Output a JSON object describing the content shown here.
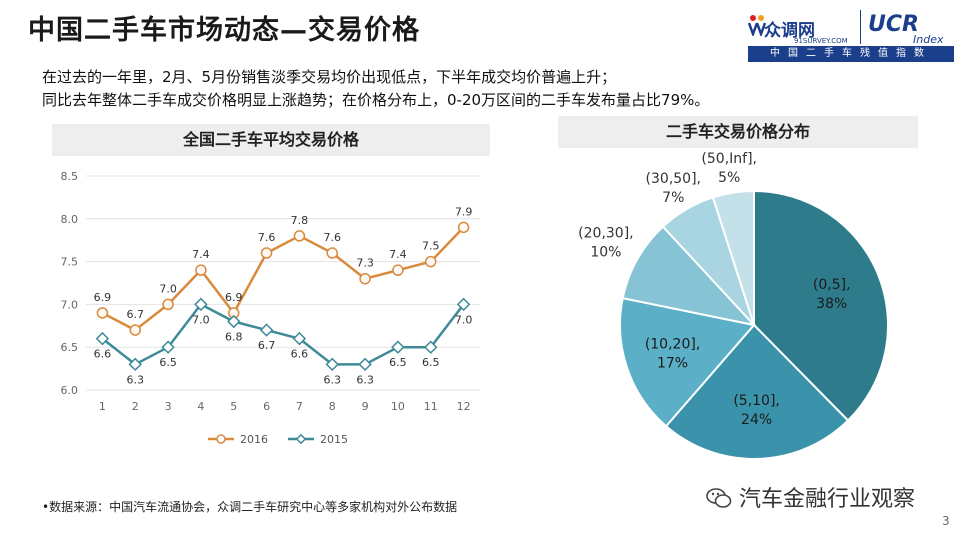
{
  "page": {
    "title": "中国二手车市场动态—交易价格",
    "summary_line1": "在过去的一年里，2月、5月份销售淡季交易均价出现低点，下半年成交均价普遍上升；",
    "summary_line2": "同比去年整体二手车成交价格明显上涨趋势；在价格分布上，0-20万区间的二手车发布量占比79%。",
    "source_note": "•数据来源：中国汽车流通协会，众调二手车研究中心等多家机构对外公布数据",
    "watermark": "汽车金融行业观察",
    "page_number": "3"
  },
  "logo": {
    "brand_cn": "众调网",
    "brand_url": "91SURVEY.COM",
    "ucr": "UCR",
    "index": "Index",
    "tagline": "中国二手车残值指数"
  },
  "colors": {
    "series_2016": "#D98A3D",
    "series_2015": "#3E8A98",
    "pie": [
      "#2E7B8C",
      "#3A93AA",
      "#5BB0C8",
      "#86C3D5",
      "#A9D4E1",
      "#C4E0E9"
    ]
  },
  "chart_data": [
    {
      "type": "line",
      "title": "全国二手车平均交易价格",
      "x": [
        1,
        2,
        3,
        4,
        5,
        6,
        7,
        8,
        9,
        10,
        11,
        12
      ],
      "ylim": [
        6.0,
        8.5
      ],
      "yticks": [
        6.0,
        6.5,
        7.0,
        7.5,
        8.0,
        8.5
      ],
      "grid": true,
      "legend": "bottom",
      "series": [
        {
          "name": "2016",
          "values": [
            6.9,
            6.7,
            7.0,
            7.4,
            6.9,
            7.6,
            7.8,
            7.6,
            7.3,
            7.4,
            7.5,
            7.9
          ]
        },
        {
          "name": "2015",
          "values": [
            6.6,
            6.3,
            6.5,
            7.0,
            6.8,
            6.7,
            6.6,
            6.3,
            6.3,
            6.5,
            6.5,
            7.0
          ]
        }
      ]
    },
    {
      "type": "pie",
      "title": "二手车交易价格分布",
      "slices": [
        {
          "label": "(0,5]",
          "value": 38
        },
        {
          "label": "(5,10]",
          "value": 24
        },
        {
          "label": "(10,20]",
          "value": 17
        },
        {
          "label": "(20,30]",
          "value": 10
        },
        {
          "label": "(30,50]",
          "value": 7
        },
        {
          "label": "(50,Inf]",
          "value": 5
        }
      ]
    }
  ]
}
